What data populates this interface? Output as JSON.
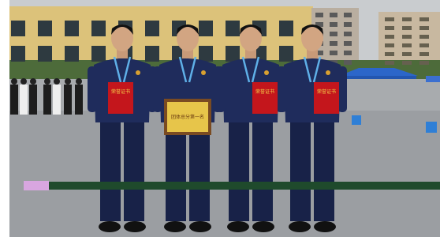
{
  "photo": {
    "certificates": [
      "荣誉证书",
      "荣誉证书",
      "荣誉证书"
    ],
    "plaque": "团体总分第一名"
  }
}
